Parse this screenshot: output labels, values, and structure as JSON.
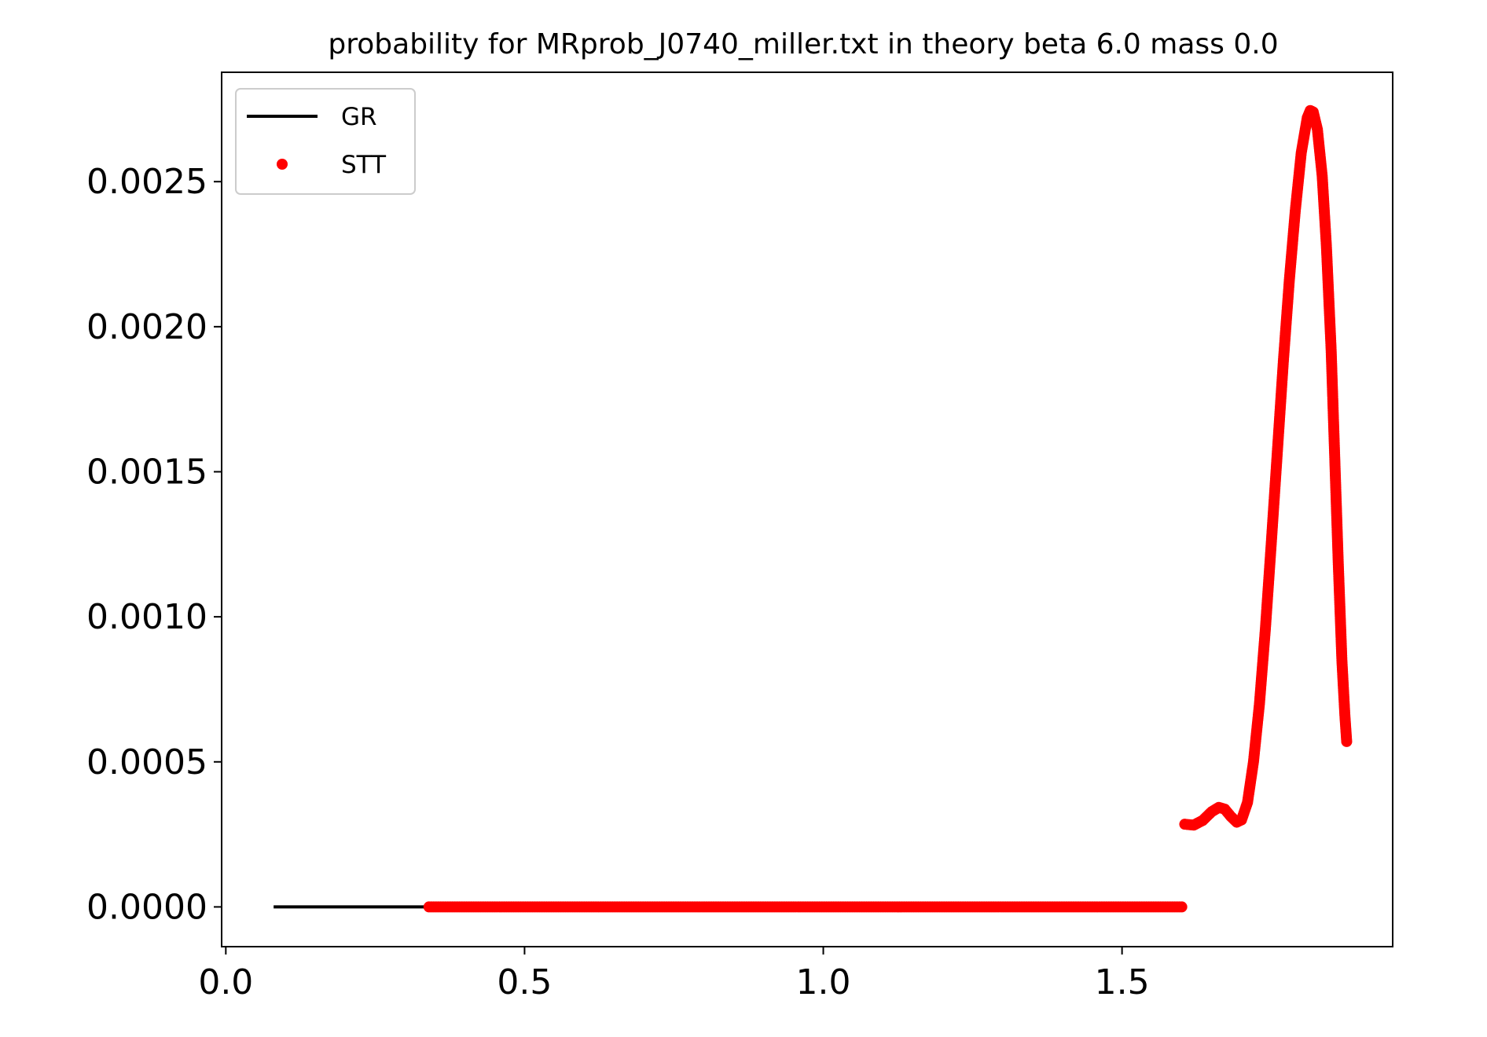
{
  "chart_data": {
    "type": "scatter",
    "title": "probability for MRprob_J0740_miller.txt in theory beta 6.0 mass 0.0",
    "xlabel": "",
    "ylabel": "",
    "xlim": [
      -0.007,
      1.953
    ],
    "ylim": [
      -0.000137,
      0.002877
    ],
    "x_ticks": [
      0.0,
      0.5,
      1.0,
      1.5
    ],
    "x_tick_labels": [
      "0.0",
      "0.5",
      "1.0",
      "1.5"
    ],
    "y_ticks": [
      0.0,
      0.0005,
      0.001,
      0.0015,
      0.002,
      0.0025
    ],
    "y_tick_labels": [
      "0.0000",
      "0.0005",
      "0.0010",
      "0.0015",
      "0.0020",
      "0.0025"
    ],
    "grid": false,
    "legend_position": "top-left",
    "series": [
      {
        "name": "GR",
        "kind": "line",
        "color": "#000000",
        "points": [
          [
            0.08,
            0.0
          ],
          [
            0.34,
            0.0
          ]
        ]
      },
      {
        "name": "STT",
        "kind": "dots",
        "color": "#ff0000",
        "segments": [
          [
            [
              0.34,
              0.0
            ],
            [
              1.6,
              0.0
            ]
          ],
          [
            [
              1.605,
              0.000285
            ],
            [
              1.62,
              0.000282
            ],
            [
              1.635,
              0.000298
            ],
            [
              1.65,
              0.000328
            ],
            [
              1.662,
              0.000343
            ],
            [
              1.672,
              0.000337
            ],
            [
              1.682,
              0.000312
            ],
            [
              1.692,
              0.000292
            ],
            [
              1.7,
              0.0003
            ],
            [
              1.71,
              0.00036
            ],
            [
              1.72,
              0.0005
            ],
            [
              1.73,
              0.0007
            ],
            [
              1.74,
              0.00096
            ],
            [
              1.75,
              0.00126
            ],
            [
              1.76,
              0.00157
            ],
            [
              1.77,
              0.00188
            ],
            [
              1.78,
              0.00216
            ],
            [
              1.79,
              0.0024
            ],
            [
              1.8,
              0.0026
            ],
            [
              1.81,
              0.00272
            ],
            [
              1.815,
              0.002745
            ],
            [
              1.82,
              0.00274
            ],
            [
              1.827,
              0.00268
            ],
            [
              1.835,
              0.00252
            ],
            [
              1.842,
              0.00228
            ],
            [
              1.85,
              0.00192
            ],
            [
              1.856,
              0.00155
            ],
            [
              1.862,
              0.00118
            ],
            [
              1.868,
              0.00085
            ],
            [
              1.873,
              0.00066
            ],
            [
              1.876,
              0.00057
            ]
          ]
        ]
      }
    ]
  }
}
